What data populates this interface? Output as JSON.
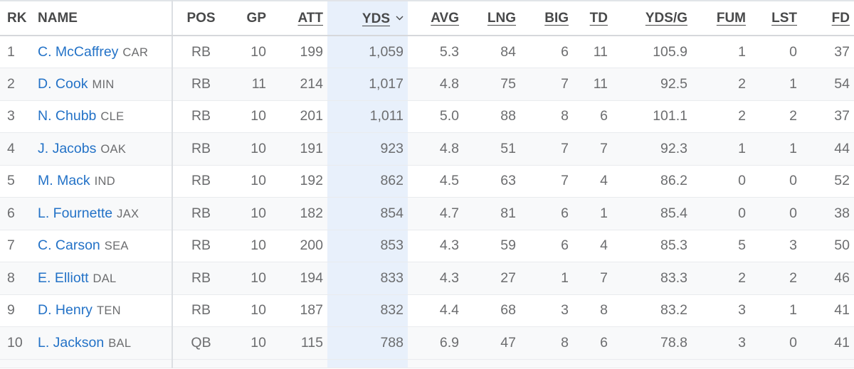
{
  "table": {
    "columns": {
      "rk": "RK",
      "name": "NAME",
      "pos": "POS",
      "gp": "GP",
      "att": "ATT",
      "yds": "YDS",
      "avg": "AVG",
      "lng": "LNG",
      "big": "BIG",
      "td": "TD",
      "ydsg": "YDS/G",
      "fum": "FUM",
      "lst": "LST",
      "fd": "FD"
    },
    "sorted_column": "yds",
    "sort_direction": "descending",
    "sort_icon": "chevron-down-icon",
    "colors": {
      "player_link": "#2372c7",
      "sorted_column_bg": "#e8f0fb",
      "zebra_row_bg": "#f8f9fa"
    },
    "rows": [
      {
        "rk": "1",
        "name": "C. McCaffrey",
        "team": "CAR",
        "pos": "RB",
        "gp": "10",
        "att": "199",
        "yds": "1,059",
        "avg": "5.3",
        "lng": "84",
        "big": "6",
        "td": "11",
        "ydsg": "105.9",
        "fum": "1",
        "lst": "0",
        "fd": "37"
      },
      {
        "rk": "2",
        "name": "D. Cook",
        "team": "MIN",
        "pos": "RB",
        "gp": "11",
        "att": "214",
        "yds": "1,017",
        "avg": "4.8",
        "lng": "75",
        "big": "7",
        "td": "11",
        "ydsg": "92.5",
        "fum": "2",
        "lst": "1",
        "fd": "54"
      },
      {
        "rk": "3",
        "name": "N. Chubb",
        "team": "CLE",
        "pos": "RB",
        "gp": "10",
        "att": "201",
        "yds": "1,011",
        "avg": "5.0",
        "lng": "88",
        "big": "8",
        "td": "6",
        "ydsg": "101.1",
        "fum": "2",
        "lst": "2",
        "fd": "37"
      },
      {
        "rk": "4",
        "name": "J. Jacobs",
        "team": "OAK",
        "pos": "RB",
        "gp": "10",
        "att": "191",
        "yds": "923",
        "avg": "4.8",
        "lng": "51",
        "big": "7",
        "td": "7",
        "ydsg": "92.3",
        "fum": "1",
        "lst": "1",
        "fd": "44"
      },
      {
        "rk": "5",
        "name": "M. Mack",
        "team": "IND",
        "pos": "RB",
        "gp": "10",
        "att": "192",
        "yds": "862",
        "avg": "4.5",
        "lng": "63",
        "big": "7",
        "td": "4",
        "ydsg": "86.2",
        "fum": "0",
        "lst": "0",
        "fd": "52"
      },
      {
        "rk": "6",
        "name": "L. Fournette",
        "team": "JAX",
        "pos": "RB",
        "gp": "10",
        "att": "182",
        "yds": "854",
        "avg": "4.7",
        "lng": "81",
        "big": "6",
        "td": "1",
        "ydsg": "85.4",
        "fum": "0",
        "lst": "0",
        "fd": "38"
      },
      {
        "rk": "7",
        "name": "C. Carson",
        "team": "SEA",
        "pos": "RB",
        "gp": "10",
        "att": "200",
        "yds": "853",
        "avg": "4.3",
        "lng": "59",
        "big": "6",
        "td": "4",
        "ydsg": "85.3",
        "fum": "5",
        "lst": "3",
        "fd": "50"
      },
      {
        "rk": "8",
        "name": "E. Elliott",
        "team": "DAL",
        "pos": "RB",
        "gp": "10",
        "att": "194",
        "yds": "833",
        "avg": "4.3",
        "lng": "27",
        "big": "1",
        "td": "7",
        "ydsg": "83.3",
        "fum": "2",
        "lst": "2",
        "fd": "46"
      },
      {
        "rk": "9",
        "name": "D. Henry",
        "team": "TEN",
        "pos": "RB",
        "gp": "10",
        "att": "187",
        "yds": "832",
        "avg": "4.4",
        "lng": "68",
        "big": "3",
        "td": "8",
        "ydsg": "83.2",
        "fum": "3",
        "lst": "1",
        "fd": "41"
      },
      {
        "rk": "10",
        "name": "L. Jackson",
        "team": "BAL",
        "pos": "QB",
        "gp": "10",
        "att": "115",
        "yds": "788",
        "avg": "6.9",
        "lng": "47",
        "big": "8",
        "td": "6",
        "ydsg": "78.8",
        "fum": "3",
        "lst": "0",
        "fd": "41"
      }
    ]
  }
}
